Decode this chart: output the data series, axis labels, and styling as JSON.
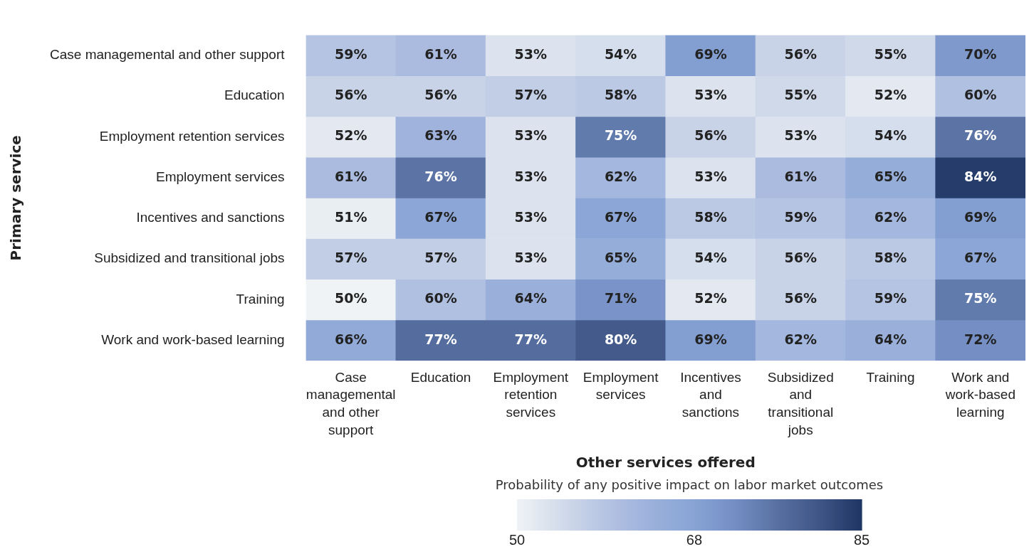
{
  "chart_data": {
    "type": "heatmap",
    "xlabel": "Other services offered",
    "ylabel": "Primary service",
    "clabel": "Probability of any positive impact on labor market outcomes",
    "categories": [
      "Case managemental and other support",
      "Education",
      "Employment retention services",
      "Employment services",
      "Incentives and sanctions",
      "Subsidized and transitional jobs",
      "Training",
      "Work and work-based learning"
    ],
    "y_categories": [
      "Case managemental and other support",
      "Education",
      "Employment retention services",
      "Employment services",
      "Incentives and sanctions",
      "Subsidized and transitional jobs",
      "Training",
      "Work and work-based learning"
    ],
    "cells": [
      [
        59,
        61,
        53,
        54,
        69,
        56,
        55,
        70
      ],
      [
        56,
        56,
        57,
        58,
        53,
        55,
        52,
        60
      ],
      [
        52,
        63,
        53,
        75,
        56,
        53,
        54,
        76
      ],
      [
        61,
        76,
        53,
        62,
        53,
        61,
        65,
        84
      ],
      [
        51,
        67,
        53,
        67,
        58,
        59,
        62,
        69
      ],
      [
        57,
        57,
        53,
        65,
        54,
        56,
        58,
        67
      ],
      [
        50,
        60,
        64,
        71,
        52,
        56,
        59,
        75
      ],
      [
        66,
        77,
        77,
        80,
        69,
        62,
        64,
        72
      ]
    ],
    "cell_labels": [
      [
        "59%",
        "61%",
        "53%",
        "54%",
        "69%",
        "56%",
        "55%",
        "70%"
      ],
      [
        "56%",
        "56%",
        "57%",
        "58%",
        "53%",
        "55%",
        "52%",
        "60%"
      ],
      [
        "52%",
        "63%",
        "53%",
        "75%",
        "56%",
        "53%",
        "54%",
        "76%"
      ],
      [
        "61%",
        "76%",
        "53%",
        "62%",
        "53%",
        "61%",
        "65%",
        "84%"
      ],
      [
        "51%",
        "67%",
        "53%",
        "67%",
        "58%",
        "59%",
        "62%",
        "69%"
      ],
      [
        "57%",
        "57%",
        "53%",
        "65%",
        "54%",
        "56%",
        "58%",
        "67%"
      ],
      [
        "50%",
        "60%",
        "64%",
        "71%",
        "52%",
        "56%",
        "59%",
        "75%"
      ],
      [
        "66%",
        "77%",
        "77%",
        "80%",
        "69%",
        "62%",
        "64%",
        "72%"
      ]
    ],
    "colors": [
      "#f0f3f6",
      "#d3dceb",
      "#b7c5e3",
      "#9eb2dc",
      "#8aa6d6",
      "#7690c6",
      "#5a72a3",
      "#3f5687",
      "#1f3664"
    ],
    "clim": [
      50,
      85
    ],
    "cticks": [
      50,
      68,
      85
    ]
  }
}
